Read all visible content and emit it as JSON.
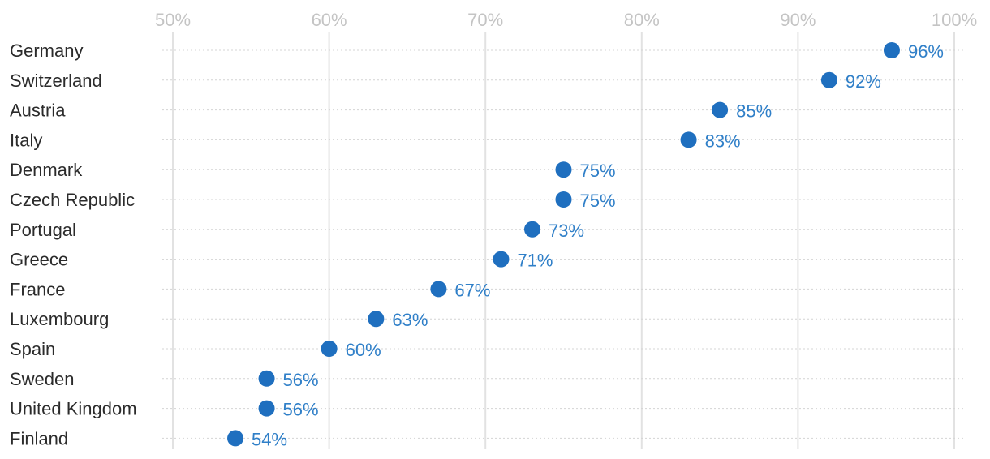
{
  "chart_data": {
    "type": "scatter",
    "title": "",
    "xlabel": "",
    "ylabel": "",
    "x_ticks": [
      "50%",
      "60%",
      "70%",
      "80%",
      "90%",
      "100%"
    ],
    "x_tick_values": [
      50,
      60,
      70,
      80,
      90,
      100
    ],
    "xlim": [
      50,
      100
    ],
    "grid": true,
    "categories": [
      "Germany",
      "Switzerland",
      "Austria",
      "Italy",
      "Denmark",
      "Czech Republic",
      "Portugal",
      "Greece",
      "France",
      "Luxembourg",
      "Spain",
      "Sweden",
      "United Kingdom",
      "Finland"
    ],
    "values": [
      96,
      92,
      85,
      83,
      75,
      75,
      73,
      71,
      67,
      63,
      60,
      56,
      56,
      54
    ],
    "value_labels": [
      "96%",
      "92%",
      "85%",
      "83%",
      "75%",
      "75%",
      "73%",
      "71%",
      "67%",
      "63%",
      "60%",
      "56%",
      "56%",
      "54%"
    ],
    "colors": {
      "dot": "#1f6fbf",
      "label": "#2f7fc8"
    }
  }
}
